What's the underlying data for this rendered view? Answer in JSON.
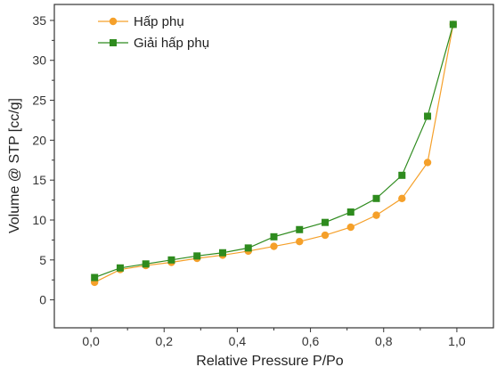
{
  "chart_data": {
    "type": "line",
    "title": "",
    "xlabel": "Relative Pressure P/Po",
    "ylabel": "Volume @ STP [cc/g]",
    "xlim": [
      -0.1,
      1.1
    ],
    "ylim": [
      -3.5,
      37
    ],
    "xticks": [
      0.0,
      0.2,
      0.4,
      0.6,
      0.8,
      1.0
    ],
    "xtick_labels": [
      "0,0",
      "0,2",
      "0,4",
      "0,6",
      "0,8",
      "1,0"
    ],
    "yticks": [
      0,
      5,
      10,
      15,
      20,
      25,
      30,
      35
    ],
    "ytick_labels": [
      "0",
      "5",
      "10",
      "15",
      "20",
      "25",
      "30",
      "35"
    ],
    "grid": false,
    "legend_position": "top-left",
    "series": [
      {
        "name": "Hấp phụ",
        "color": "#f5a02a",
        "marker": "circle",
        "x": [
          0.01,
          0.08,
          0.15,
          0.22,
          0.29,
          0.36,
          0.43,
          0.5,
          0.57,
          0.64,
          0.71,
          0.78,
          0.85,
          0.92,
          0.99
        ],
        "y": [
          2.2,
          3.8,
          4.3,
          4.7,
          5.2,
          5.6,
          6.1,
          6.7,
          7.3,
          8.1,
          9.1,
          10.6,
          12.7,
          17.2,
          34.5
        ]
      },
      {
        "name": "Giải hấp phụ",
        "color": "#2e8b1e",
        "marker": "square",
        "x": [
          0.01,
          0.08,
          0.15,
          0.22,
          0.29,
          0.36,
          0.43,
          0.5,
          0.57,
          0.64,
          0.71,
          0.78,
          0.85,
          0.92,
          0.99
        ],
        "y": [
          2.8,
          4.0,
          4.5,
          5.0,
          5.5,
          5.9,
          6.5,
          7.9,
          8.8,
          9.7,
          11.0,
          12.7,
          15.6,
          23.0,
          34.5
        ]
      }
    ]
  }
}
